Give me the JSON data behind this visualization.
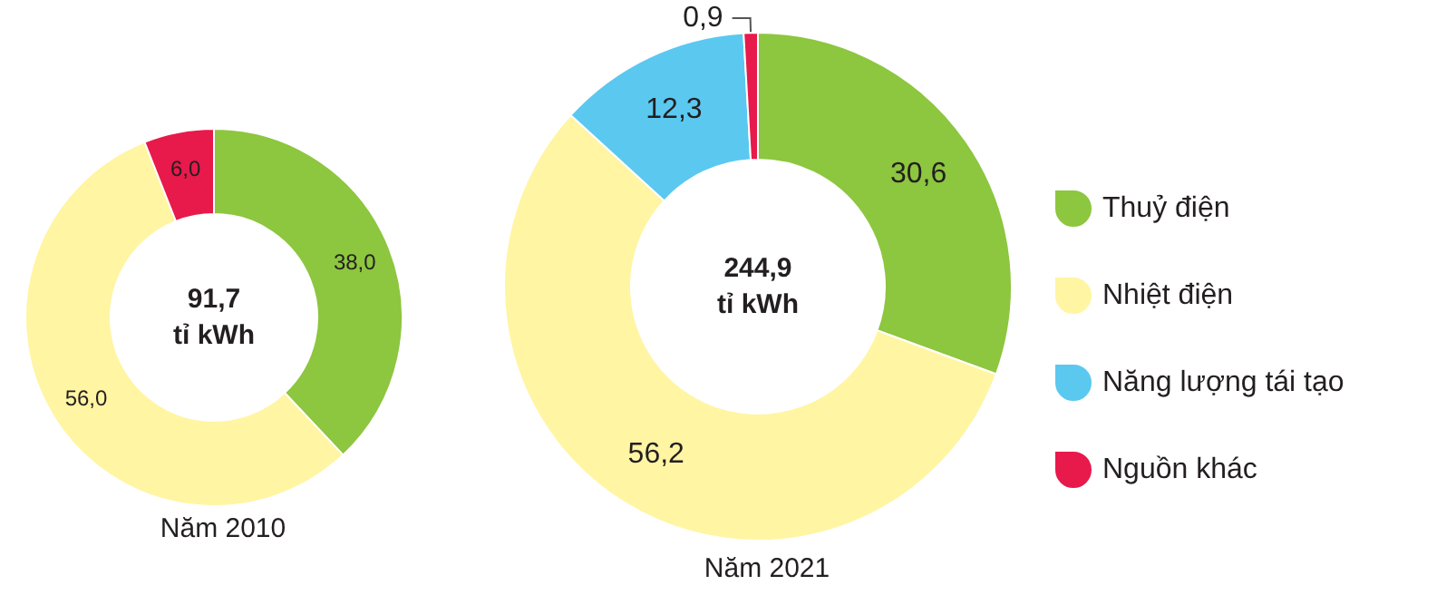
{
  "chart_data": [
    {
      "type": "donut",
      "title": "Năm 2010",
      "categories": [
        null,
        null,
        null
      ],
      "values": [
        38.0,
        56.0,
        6.0
      ],
      "colors": [
        "#8dc63f",
        "#fff5a3",
        "#e8194b"
      ],
      "value_labels": [
        "38,0",
        "56,0",
        "6,0"
      ],
      "annotations": [
        "91,7",
        "tỉ kWh"
      ],
      "legend": false
    },
    {
      "type": "donut",
      "title": "Năm 2021",
      "categories": [
        "Thuỷ điện",
        "Nhiệt điện",
        "Năng lượng tái tạo",
        "Nguồn khác"
      ],
      "values": [
        30.6,
        56.2,
        12.3,
        0.9
      ],
      "colors": [
        "#8dc63f",
        "#fff5a3",
        "#5bc8f0",
        "#e8194b"
      ],
      "value_labels": [
        "30,6",
        "56,2",
        "12,3",
        "0,9"
      ],
      "annotations": [
        "244,9",
        "tỉ kWh"
      ],
      "legend": "right"
    }
  ]
}
